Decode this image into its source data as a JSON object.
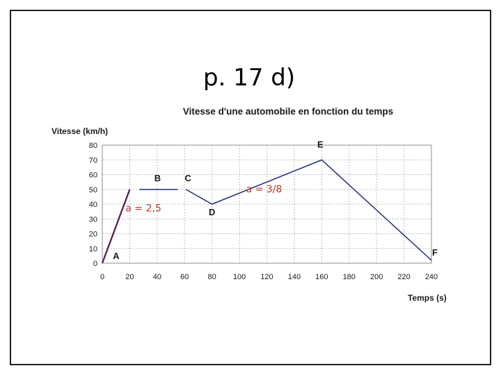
{
  "slide": {
    "title": "p. 17 d)"
  },
  "colors": {
    "frame": "#1f1f1f",
    "series": "#1f2a7a",
    "annotation": "#c0392b",
    "tangent": "#c0392b",
    "grid": "#bdbdbd"
  },
  "chart_data": {
    "type": "line",
    "title": "Vitesse d'une automobile en fonction du temps",
    "xlabel": "Temps (s)",
    "ylabel": "Vitesse (km/h)",
    "xlim": [
      0,
      240
    ],
    "ylim": [
      0,
      80
    ],
    "x_ticks": [
      0,
      20,
      40,
      60,
      80,
      100,
      120,
      140,
      160,
      180,
      200,
      220,
      240
    ],
    "y_ticks": [
      0,
      10,
      20,
      30,
      40,
      50,
      60,
      70,
      80
    ],
    "grid": true,
    "series": [
      {
        "segments": [
          [
            [
              0,
              0
            ],
            [
              20,
              50
            ]
          ],
          [
            [
              27,
              50
            ],
            [
              55,
              50
            ]
          ],
          [
            [
              61,
              50
            ],
            [
              80,
              40
            ],
            [
              160,
              70
            ],
            [
              240,
              2
            ]
          ]
        ]
      }
    ],
    "points": [
      {
        "label": "A",
        "x": 0,
        "y": 0
      },
      {
        "label": "B",
        "x": 20,
        "y": 50
      },
      {
        "label": "C",
        "x": 60,
        "y": 50
      },
      {
        "label": "D",
        "x": 80,
        "y": 40
      },
      {
        "label": "E",
        "x": 160,
        "y": 70
      },
      {
        "label": "F",
        "x": 240,
        "y": 2
      }
    ],
    "tangent": {
      "x1": 0,
      "y1": 0,
      "x2": 20,
      "y2": 50
    },
    "annotations": [
      {
        "text": "a = 2,5",
        "x": 30,
        "y": 35
      },
      {
        "text": "a = 3/8",
        "x": 118,
        "y": 48
      }
    ]
  }
}
